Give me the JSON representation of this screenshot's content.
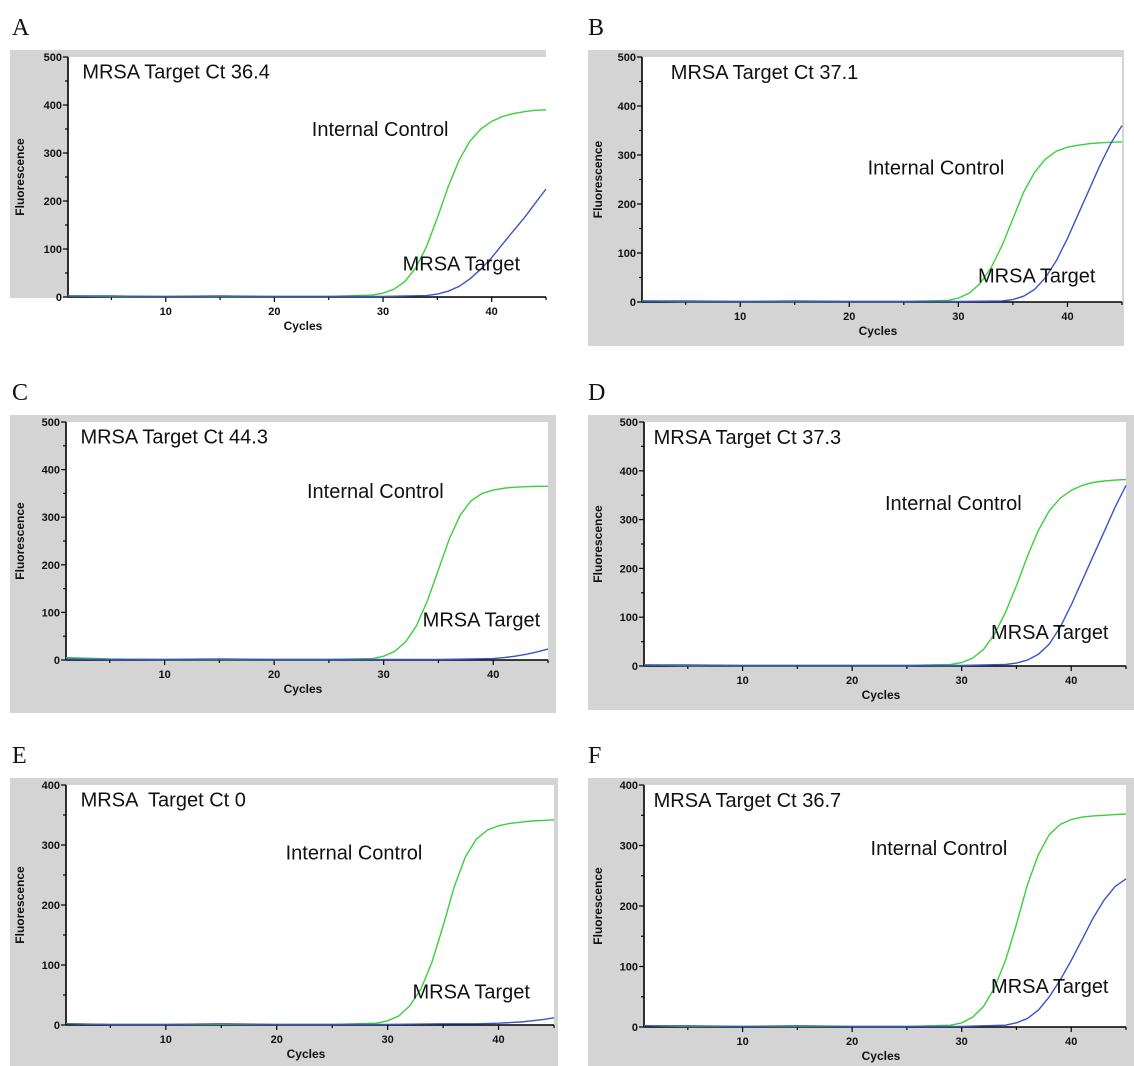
{
  "chart_data": [
    {
      "panel": "A",
      "type": "line",
      "title": "MRSA Target Ct 36.4",
      "xlabel": "Cycles",
      "ylabel": "Fluorescence",
      "xlim": [
        1,
        45
      ],
      "ylim": [
        0,
        500
      ],
      "xticks": [
        10,
        20,
        30,
        40
      ],
      "yticks": [
        0,
        100,
        200,
        300,
        400,
        500
      ],
      "annotations": {
        "internal_control": "Internal Control",
        "mrsa_target": "MRSA Target"
      },
      "series": [
        {
          "key": "internal_control",
          "color": "#3ccf3c",
          "x": [
            1,
            5,
            10,
            15,
            20,
            25,
            29,
            30,
            31,
            32,
            33,
            34,
            35,
            36,
            37,
            38,
            39,
            40,
            41,
            42,
            43,
            44,
            45
          ],
          "y": [
            2,
            1,
            1,
            1,
            1,
            1,
            4,
            8,
            16,
            32,
            60,
            105,
            165,
            230,
            285,
            325,
            350,
            366,
            376,
            382,
            386,
            389,
            390
          ]
        },
        {
          "key": "mrsa_target",
          "color": "#3a54c8",
          "x": [
            1,
            5,
            10,
            15,
            20,
            25,
            30,
            34,
            35,
            36,
            37,
            38,
            39,
            40,
            41,
            42,
            43,
            44,
            45
          ],
          "y": [
            2,
            2,
            1,
            2,
            1,
            1,
            1,
            3,
            6,
            12,
            22,
            38,
            58,
            82,
            110,
            138,
            165,
            195,
            225
          ]
        }
      ]
    },
    {
      "panel": "B",
      "type": "line",
      "title": "MRSA Target Ct 37.1",
      "xlabel": "Cycles",
      "ylabel": "Fluorescence",
      "xlim": [
        1,
        45
      ],
      "ylim": [
        0,
        500
      ],
      "xticks": [
        10,
        20,
        30,
        40
      ],
      "yticks": [
        0,
        100,
        200,
        300,
        400,
        500
      ],
      "annotations": {
        "internal_control": "Internal Control",
        "mrsa_target": "MRSA Target"
      },
      "series": [
        {
          "key": "internal_control",
          "color": "#3ccf3c",
          "x": [
            1,
            5,
            10,
            15,
            20,
            25,
            29,
            30,
            31,
            32,
            33,
            34,
            35,
            36,
            37,
            38,
            39,
            40,
            41,
            42,
            43,
            44,
            45
          ],
          "y": [
            2,
            1,
            1,
            1,
            1,
            1,
            3,
            8,
            18,
            38,
            70,
            115,
            170,
            225,
            265,
            292,
            308,
            316,
            320,
            323,
            325,
            326,
            327
          ]
        },
        {
          "key": "mrsa_target",
          "color": "#3a54c8",
          "x": [
            1,
            5,
            10,
            15,
            20,
            25,
            30,
            34,
            35,
            36,
            37,
            38,
            39,
            40,
            41,
            42,
            43,
            44,
            45
          ],
          "y": [
            2,
            2,
            1,
            2,
            1,
            1,
            1,
            2,
            5,
            12,
            26,
            50,
            85,
            130,
            180,
            230,
            280,
            325,
            360
          ]
        }
      ]
    },
    {
      "panel": "C",
      "type": "line",
      "title": "MRSA Target Ct 44.3",
      "xlabel": "Cycles",
      "ylabel": "Fluorescence",
      "xlim": [
        1,
        45
      ],
      "ylim": [
        0,
        500
      ],
      "xticks": [
        10,
        20,
        30,
        40
      ],
      "yticks": [
        0,
        100,
        200,
        300,
        400,
        500
      ],
      "annotations": {
        "internal_control": "Internal Control",
        "mrsa_target": "MRSA Target"
      },
      "series": [
        {
          "key": "internal_control",
          "color": "#3ccf3c",
          "x": [
            1,
            5,
            10,
            15,
            20,
            25,
            29,
            30,
            31,
            32,
            33,
            34,
            35,
            36,
            37,
            38,
            39,
            40,
            41,
            42,
            43,
            44,
            45
          ],
          "y": [
            5,
            2,
            1,
            1,
            1,
            1,
            3,
            8,
            18,
            38,
            72,
            125,
            190,
            255,
            305,
            335,
            350,
            357,
            361,
            363,
            364,
            365,
            365
          ]
        },
        {
          "key": "mrsa_target",
          "color": "#3a54c8",
          "x": [
            1,
            5,
            10,
            15,
            20,
            25,
            30,
            35,
            38,
            40,
            41,
            42,
            43,
            44,
            45
          ],
          "y": [
            2,
            1,
            1,
            2,
            1,
            1,
            1,
            1,
            2,
            3,
            5,
            8,
            12,
            17,
            23
          ]
        }
      ]
    },
    {
      "panel": "D",
      "type": "line",
      "title": "MRSA Target Ct 37.3",
      "xlabel": "Cycles",
      "ylabel": "Fluorescence",
      "xlim": [
        1,
        45
      ],
      "ylim": [
        0,
        500
      ],
      "xticks": [
        10,
        20,
        30,
        40
      ],
      "yticks": [
        0,
        100,
        200,
        300,
        400,
        500
      ],
      "annotations": {
        "internal_control": "Internal Control",
        "mrsa_target": "MRSA Target"
      },
      "series": [
        {
          "key": "internal_control",
          "color": "#3ccf3c",
          "x": [
            1,
            5,
            10,
            15,
            20,
            25,
            29,
            30,
            31,
            32,
            33,
            34,
            35,
            36,
            37,
            38,
            39,
            40,
            41,
            42,
            43,
            44,
            45
          ],
          "y": [
            2,
            1,
            1,
            1,
            1,
            1,
            3,
            7,
            16,
            34,
            65,
            110,
            165,
            225,
            278,
            318,
            344,
            360,
            370,
            376,
            379,
            381,
            382
          ]
        },
        {
          "key": "mrsa_target",
          "color": "#3a54c8",
          "x": [
            1,
            5,
            10,
            15,
            20,
            25,
            30,
            34,
            35,
            36,
            37,
            38,
            39,
            40,
            41,
            42,
            43,
            44,
            45
          ],
          "y": [
            2,
            2,
            1,
            1,
            1,
            1,
            1,
            3,
            6,
            12,
            24,
            45,
            80,
            125,
            175,
            225,
            275,
            325,
            370
          ]
        }
      ]
    },
    {
      "panel": "E",
      "type": "line",
      "title": "MRSA  Target Ct 0",
      "xlabel": "Cycles",
      "ylabel": "Fluorescence",
      "xlim": [
        1,
        45
      ],
      "ylim": [
        0,
        400
      ],
      "xticks": [
        10,
        20,
        30,
        40
      ],
      "yticks": [
        0,
        100,
        200,
        300,
        400
      ],
      "annotations": {
        "internal_control": "Internal Control",
        "mrsa_target": "MRSA Target"
      },
      "series": [
        {
          "key": "internal_control",
          "color": "#3ccf3c",
          "x": [
            1,
            5,
            10,
            15,
            20,
            25,
            29,
            30,
            31,
            32,
            33,
            34,
            35,
            36,
            37,
            38,
            39,
            40,
            41,
            42,
            43,
            44,
            45
          ],
          "y": [
            2,
            1,
            1,
            1,
            1,
            1,
            3,
            7,
            15,
            32,
            60,
            105,
            165,
            230,
            280,
            310,
            325,
            332,
            336,
            338,
            340,
            341,
            342
          ]
        },
        {
          "key": "mrsa_target",
          "color": "#3a54c8",
          "x": [
            1,
            5,
            10,
            15,
            20,
            25,
            30,
            35,
            38,
            40,
            41,
            42,
            43,
            44,
            45
          ],
          "y": [
            2,
            1,
            1,
            2,
            1,
            1,
            1,
            2,
            2,
            3,
            4,
            5,
            7,
            9,
            12
          ]
        }
      ]
    },
    {
      "panel": "F",
      "type": "line",
      "title": "MRSA Target Ct 36.7",
      "xlabel": "Cycles",
      "ylabel": "Fluorescence",
      "xlim": [
        1,
        45
      ],
      "ylim": [
        0,
        400
      ],
      "xticks": [
        10,
        20,
        30,
        40
      ],
      "yticks": [
        0,
        100,
        200,
        300,
        400
      ],
      "annotations": {
        "internal_control": "Internal Control",
        "mrsa_target": "MRSA Target"
      },
      "series": [
        {
          "key": "internal_control",
          "color": "#3ccf3c",
          "x": [
            1,
            5,
            10,
            15,
            20,
            25,
            29,
            30,
            31,
            32,
            33,
            34,
            35,
            36,
            37,
            38,
            39,
            40,
            41,
            42,
            43,
            44,
            45
          ],
          "y": [
            2,
            1,
            1,
            1,
            1,
            1,
            3,
            7,
            16,
            34,
            65,
            110,
            170,
            235,
            285,
            318,
            335,
            343,
            347,
            349,
            350,
            351,
            352
          ]
        },
        {
          "key": "mrsa_target",
          "color": "#3a54c8",
          "x": [
            1,
            5,
            10,
            15,
            20,
            25,
            30,
            34,
            35,
            36,
            37,
            38,
            39,
            40,
            41,
            42,
            43,
            44,
            45
          ],
          "y": [
            2,
            2,
            1,
            2,
            1,
            1,
            1,
            3,
            7,
            14,
            28,
            50,
            78,
            110,
            145,
            180,
            210,
            232,
            245
          ]
        }
      ]
    }
  ]
}
